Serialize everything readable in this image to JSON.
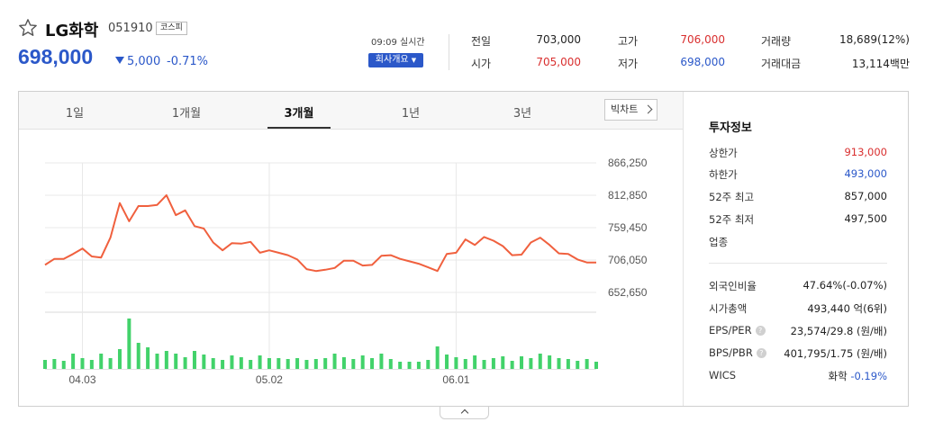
{
  "stock": {
    "name": "LG화학",
    "code": "051910",
    "market": "코스피",
    "price": "698,000",
    "change": "5,000",
    "change_rate": "-0.71%",
    "realtime": "09:09 실시간",
    "overview_button": "회사개요",
    "star_icon": "star-outline-icon"
  },
  "quote": [
    {
      "label": "전일",
      "value": "703,000",
      "color": "black"
    },
    {
      "label": "시가",
      "value": "705,000",
      "color": "red"
    },
    {
      "label": "고가",
      "value": "706,000",
      "color": "red"
    },
    {
      "label": "저가",
      "value": "698,000",
      "color": "blue"
    },
    {
      "label": "거래량",
      "value": "18,689(12%)",
      "color": "black"
    },
    {
      "label": "거래대금",
      "value": "13,114백만",
      "color": "black"
    }
  ],
  "tabs": [
    {
      "label": "1일"
    },
    {
      "label": "1개월"
    },
    {
      "label": "3개월",
      "active": true
    },
    {
      "label": "1년"
    },
    {
      "label": "3년"
    }
  ],
  "bigchart_button": "빅차트",
  "investment": {
    "title": "투자정보",
    "rows1": [
      {
        "label": "상한가",
        "value": "913,000",
        "color": "red"
      },
      {
        "label": "하한가",
        "value": "493,000",
        "color": "blue"
      },
      {
        "label": "52주 최고",
        "value": "857,000",
        "color": "black"
      },
      {
        "label": "52주 최저",
        "value": "497,500",
        "color": "black"
      },
      {
        "label": "업종",
        "value": "",
        "color": "black"
      }
    ],
    "rows2": [
      {
        "label": "외국인비율",
        "value": "47.64%",
        "extra": "(-0.07%)"
      },
      {
        "label": "시가총액",
        "value": "493,440 억(6위)",
        "extra": ""
      },
      {
        "label": "EPS/PER",
        "value": "23,574/29.8 (원/배)",
        "extra": "",
        "help": "?"
      },
      {
        "label": "BPS/PBR",
        "value": "401,795/1.75 (원/배)",
        "extra": "",
        "help": "?"
      },
      {
        "label": "WICS",
        "value": "화학",
        "extra": "-0.19%"
      }
    ]
  },
  "colors": {
    "accent_blue": "#2b58c9",
    "up_red": "#d92f2f",
    "line": "#f0603e",
    "volume": "#42d26a"
  },
  "chart_data": {
    "type": "line",
    "y_ticks": [
      "866,250",
      "812,850",
      "759,450",
      "706,050",
      "652,650"
    ],
    "y_tick_values": [
      866250,
      812850,
      759450,
      706050,
      652650
    ],
    "x_ticks": [
      "04.03",
      "05.02",
      "06.01"
    ],
    "x_tick_index": [
      4,
      24,
      44
    ],
    "ylim": [
      652650,
      866250
    ],
    "grid": true,
    "series": [
      {
        "values": [
          698000,
          708000,
          708000,
          716000,
          725000,
          712000,
          710000,
          743000,
          800000,
          770000,
          795000,
          795000,
          797000,
          813000,
          780000,
          788000,
          762000,
          758000,
          735000,
          722000,
          734000,
          733000,
          736000,
          718000,
          722000,
          718000,
          714000,
          707000,
          691000,
          688000,
          690000,
          693000,
          705000,
          705000,
          697000,
          698000,
          713000,
          714000,
          708000,
          704000,
          700000,
          694000,
          688000,
          716000,
          718000,
          740000,
          731000,
          744000,
          738000,
          729000,
          714000,
          715000,
          735000,
          743000,
          731000,
          717000,
          716000,
          707000,
          702000,
          702000
        ]
      }
    ],
    "volume": [
      10,
      11,
      9,
      17,
      12,
      10,
      17,
      12,
      22,
      56,
      29,
      24,
      17,
      20,
      17,
      13,
      20,
      16,
      12,
      10,
      15,
      13,
      10,
      15,
      12,
      12,
      11,
      12,
      10,
      11,
      12,
      17,
      13,
      11,
      15,
      12,
      17,
      11,
      8,
      8,
      8,
      10,
      25,
      16,
      13,
      11,
      15,
      10,
      12,
      14,
      9,
      14,
      12,
      17,
      15,
      12,
      11,
      9,
      11,
      8
    ]
  }
}
